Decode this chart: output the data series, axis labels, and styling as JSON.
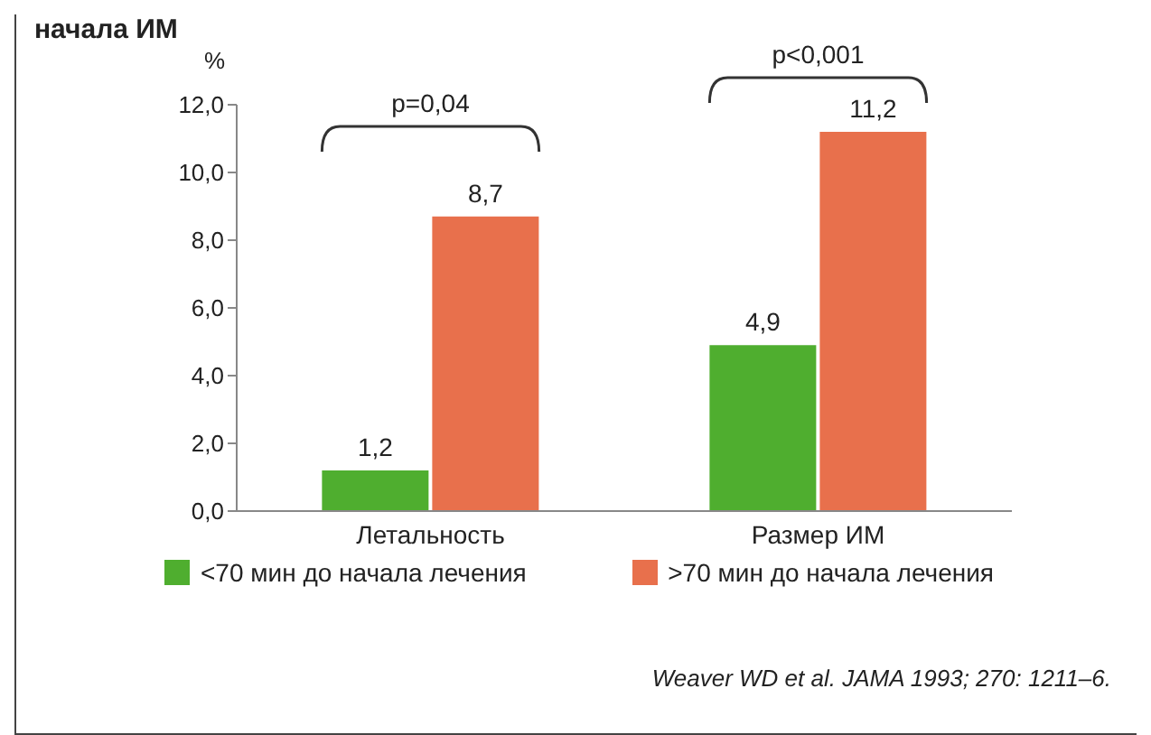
{
  "chart_data": {
    "type": "bar",
    "title": "начала ИМ",
    "ylabel": "%",
    "categories": [
      "Летальность",
      "Размер ИМ"
    ],
    "series": [
      {
        "name": "<70 мин до начала лечения",
        "color": "#4fae2f",
        "values": [
          1.2,
          4.9
        ],
        "value_labels": [
          "1,2",
          "4,9"
        ]
      },
      {
        "name": ">70 мин до начала лечения",
        "color": "#e8704c",
        "values": [
          8.7,
          11.2
        ],
        "value_labels": [
          "8,7",
          "11,2"
        ]
      }
    ],
    "ylim": [
      0,
      12
    ],
    "yticks": [
      {
        "value": 0,
        "label": "0,0"
      },
      {
        "value": 2,
        "label": "2,0"
      },
      {
        "value": 4,
        "label": "4,0"
      },
      {
        "value": 6,
        "label": "6,0"
      },
      {
        "value": 8,
        "label": "8,0"
      },
      {
        "value": 10,
        "label": "10,0"
      },
      {
        "value": 12,
        "label": "12,0"
      }
    ],
    "grid": false,
    "legend": "bottom",
    "annotations": [
      "p=0,04",
      "p<0,001",
      "Weaver WD et al. JAMA 1993; 270: 1211–6."
    ]
  }
}
